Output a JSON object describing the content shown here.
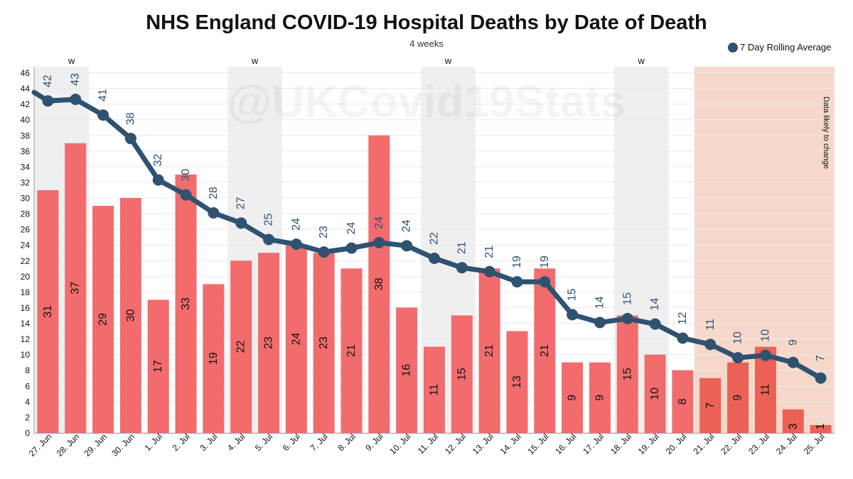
{
  "chart_data": {
    "type": "bar+line",
    "title": "NHS England COVID-19 Hospital Deaths by Date of Death",
    "subtitle": "4 weeks",
    "watermark": "@UKCovid19Stats",
    "xlabel": "",
    "ylabel": "",
    "ylim": [
      0,
      46
    ],
    "yticks": [
      0,
      2,
      4,
      6,
      8,
      10,
      12,
      14,
      16,
      18,
      20,
      22,
      24,
      26,
      28,
      30,
      32,
      34,
      36,
      38,
      40,
      42,
      44,
      46
    ],
    "grid": true,
    "legend": {
      "label": "7 Day Rolling Average",
      "position": "top-right"
    },
    "categories": [
      "27. Jun",
      "28. Jun",
      "29. Jun",
      "30. Jun",
      "1. Jul",
      "2. Jul",
      "3. Jul",
      "4. Jul",
      "5. Jul",
      "6. Jul",
      "7. Jul",
      "8. Jul",
      "9. Jul",
      "10. Jul",
      "11. Jul",
      "12. Jul",
      "13. Jul",
      "14. Jul",
      "15. Jul",
      "16. Jul",
      "17. Jul",
      "18. Jul",
      "19. Jul",
      "20. Jul",
      "21. Jul",
      "22. Jul",
      "23. Jul",
      "24. Jul",
      "25. Jul"
    ],
    "series": [
      {
        "name": "Deaths",
        "type": "bar",
        "values": [
          31,
          37,
          29,
          30,
          17,
          33,
          19,
          22,
          23,
          24,
          23,
          21,
          38,
          16,
          11,
          15,
          21,
          13,
          21,
          9,
          9,
          15,
          10,
          8,
          7,
          9,
          11,
          3,
          1
        ]
      },
      {
        "name": "7 Day Rolling Average",
        "type": "line",
        "values": [
          42.4,
          42.6,
          40.6,
          37.6,
          32.3,
          30.4,
          28.1,
          26.8,
          24.7,
          24.1,
          23.1,
          23.6,
          24.3,
          23.9,
          22.3,
          21.1,
          20.6,
          19.3,
          19.3,
          15.1,
          14.1,
          14.6,
          13.9,
          12.1,
          11.3,
          9.6,
          9.9,
          9.0,
          7.0
        ],
        "labels": [
          "42",
          "43",
          "41",
          "38",
          "32",
          "30",
          "28",
          "27",
          "25",
          "24",
          "23",
          "24",
          "24",
          "24",
          "22",
          "21",
          "21",
          "19",
          "19",
          "15",
          "14",
          "15",
          "14",
          "12",
          "11",
          "10",
          "10",
          "9",
          "7"
        ]
      }
    ],
    "weekends": [
      {
        "label": "w",
        "start": "27. Jun",
        "end": "28. Jun"
      },
      {
        "label": "w",
        "start": "4. Jul",
        "end": "5. Jul"
      },
      {
        "label": "w",
        "start": "11. Jul",
        "end": "12. Jul"
      },
      {
        "label": "w",
        "start": "18. Jul",
        "end": "19. Jul"
      }
    ],
    "provisional": {
      "start": "21. Jul",
      "end": "25. Jul",
      "annotation": "Data likely to change"
    },
    "colors": {
      "bar": "#f26c6e",
      "bar_provisional": "#ec6156",
      "line": "#2f5270",
      "label": "#2f5270",
      "weekend": "#efefef",
      "provisional": "#f6d8cb"
    }
  }
}
